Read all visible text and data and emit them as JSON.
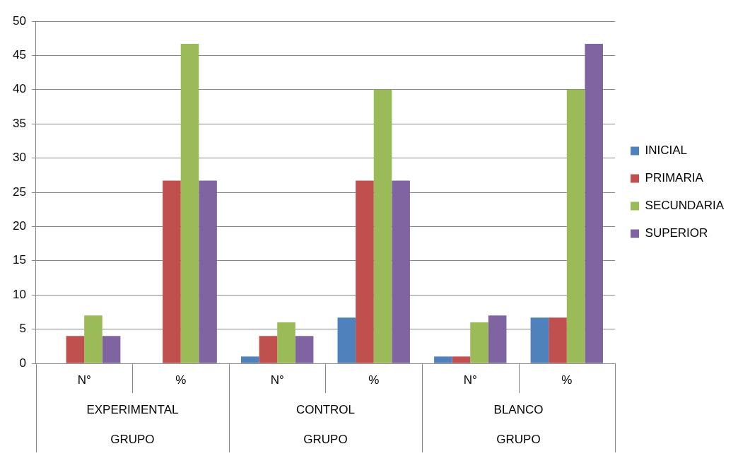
{
  "chart_data": {
    "type": "bar",
    "categories": [
      "N°",
      "%",
      "N°",
      "%",
      "N°",
      "%"
    ],
    "annotations": [
      "EXPERIMENTAL",
      "CONTROL",
      "BLANCO",
      "GRUPO",
      "GRUPO",
      "GRUPO"
    ],
    "series": [
      {
        "name": "INICIAL",
        "color": "#4f81bd",
        "values": [
          0,
          0,
          1,
          6.7,
          1,
          6.7
        ]
      },
      {
        "name": "PRIMARIA",
        "color": "#c0504d",
        "values": [
          4,
          26.7,
          4,
          26.7,
          1,
          6.7
        ]
      },
      {
        "name": "SECUNDARIA",
        "color": "#9bbb59",
        "values": [
          7,
          46.7,
          6,
          40,
          6,
          40
        ]
      },
      {
        "name": "SUPERIOR",
        "color": "#8064a2",
        "values": [
          4,
          26.7,
          4,
          26.7,
          7,
          46.7
        ]
      }
    ],
    "ylim": [
      0,
      50
    ],
    "yticks": [
      0,
      5,
      10,
      15,
      20,
      25,
      30,
      35,
      40,
      45,
      50
    ],
    "grid": "y",
    "legend": "right"
  }
}
